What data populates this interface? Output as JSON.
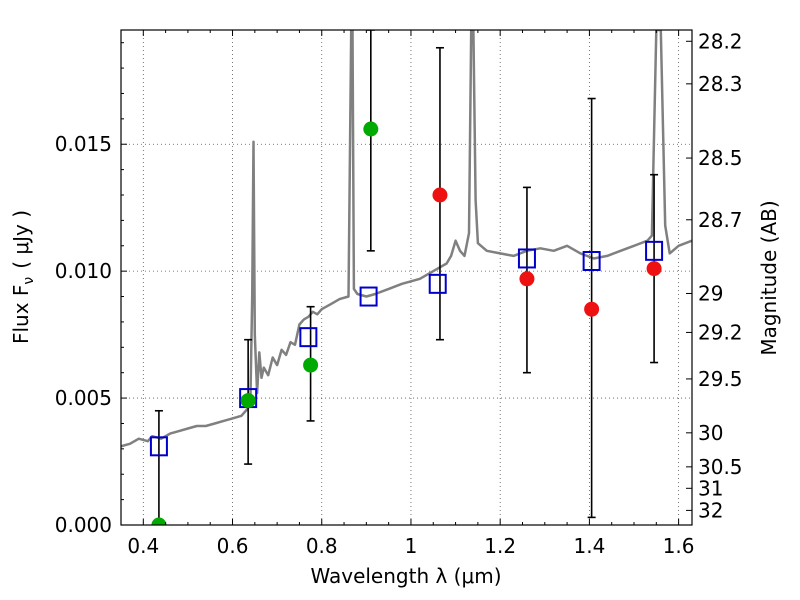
{
  "chart_data": {
    "type": "scatter",
    "xlabel": "Wavelength  λ (μm)",
    "ylabel": "Flux  F",
    "ylabel_sub": "ν",
    "ylabel_unit": "( μJy )",
    "y2label": "Magnitude (AB)",
    "xlim": [
      0.35,
      1.63
    ],
    "ylim": [
      0.0,
      0.0195
    ],
    "grid": true,
    "x_ticks": [
      0.4,
      0.6,
      0.8,
      1.0,
      1.2,
      1.4,
      1.6
    ],
    "x_tick_labels": [
      "0.4",
      "0.6",
      "0.8",
      "1",
      "1.2",
      "1.4",
      "1.6"
    ],
    "y_ticks": [
      0.0,
      0.005,
      0.01,
      0.015
    ],
    "y_tick_labels": [
      "0.000",
      "0.005",
      "0.010",
      "0.015"
    ],
    "y2_ticks": [
      28.2,
      28.3,
      28.5,
      28.7,
      29.0,
      29.2,
      29.5,
      30.0,
      30.5,
      31.0,
      32.0
    ],
    "y2_tick_labels": [
      "28.2",
      "28.3",
      "28.5",
      "28.7",
      "29",
      "29.2",
      "29.5",
      "30",
      "30.5",
      "31",
      "32"
    ],
    "colors": {
      "model": "#808080",
      "model_photometry": "#0000cc",
      "detection": "#00aa00",
      "upper": "#ee1111",
      "error_bar": "#000000",
      "grid": "#555555"
    },
    "series": [
      {
        "kind": "model-spectrum",
        "x": [
          0.35,
          0.37,
          0.39,
          0.41,
          0.42,
          0.44,
          0.46,
          0.48,
          0.5,
          0.52,
          0.54,
          0.56,
          0.58,
          0.6,
          0.62,
          0.635,
          0.64,
          0.644,
          0.647,
          0.65,
          0.655,
          0.66,
          0.665,
          0.67,
          0.68,
          0.69,
          0.7,
          0.71,
          0.72,
          0.73,
          0.74,
          0.75,
          0.76,
          0.77,
          0.78,
          0.79,
          0.8,
          0.81,
          0.82,
          0.84,
          0.86,
          0.866,
          0.869,
          0.872,
          0.88,
          0.9,
          0.92,
          0.95,
          0.98,
          1.0,
          1.02,
          1.04,
          1.06,
          1.08,
          1.09,
          1.1,
          1.11,
          1.12,
          1.13,
          1.135,
          1.14,
          1.145,
          1.15,
          1.17,
          1.2,
          1.23,
          1.26,
          1.29,
          1.32,
          1.35,
          1.38,
          1.41,
          1.44,
          1.47,
          1.5,
          1.53,
          1.54,
          1.55,
          1.56,
          1.57,
          1.58,
          1.6,
          1.63
        ],
        "y": [
          0.0031,
          0.0032,
          0.0034,
          0.0033,
          0.0035,
          0.0034,
          0.0036,
          0.0037,
          0.0038,
          0.0039,
          0.0039,
          0.004,
          0.0041,
          0.0042,
          0.0043,
          0.0046,
          0.0049,
          0.009,
          0.0151,
          0.0075,
          0.0052,
          0.0068,
          0.0058,
          0.0062,
          0.0059,
          0.0066,
          0.0063,
          0.0069,
          0.0067,
          0.0072,
          0.0071,
          0.0079,
          0.0081,
          0.0082,
          0.0084,
          0.0083,
          0.0085,
          0.0086,
          0.0087,
          0.0089,
          0.009,
          0.0195,
          0.0195,
          0.0093,
          0.0091,
          0.009,
          0.0091,
          0.0093,
          0.0095,
          0.0096,
          0.0097,
          0.0099,
          0.0101,
          0.0103,
          0.0106,
          0.0112,
          0.0108,
          0.0106,
          0.0115,
          0.0195,
          0.0195,
          0.0128,
          0.0111,
          0.0108,
          0.0107,
          0.0106,
          0.0108,
          0.0109,
          0.0108,
          0.011,
          0.0107,
          0.0105,
          0.0106,
          0.0108,
          0.011,
          0.0112,
          0.0114,
          0.0195,
          0.0195,
          0.0118,
          0.0107,
          0.011,
          0.0112
        ]
      },
      {
        "kind": "model-photometry",
        "marker": "open-square",
        "x": [
          0.435,
          0.635,
          0.77,
          0.905,
          1.06,
          1.26,
          1.405,
          1.545
        ],
        "y": [
          0.0031,
          0.005,
          0.0074,
          0.009,
          0.0095,
          0.0105,
          0.0104,
          0.0108
        ]
      },
      {
        "kind": "observed-detections",
        "marker": "filled-circle",
        "x": [
          0.435,
          0.635,
          0.775,
          0.91
        ],
        "y": [
          0.0,
          0.0049,
          0.0063,
          0.0156
        ]
      },
      {
        "kind": "observed-limits",
        "marker": "filled-circle",
        "x": [
          1.065,
          1.26,
          1.405,
          1.545
        ],
        "y": [
          0.013,
          0.0097,
          0.0085,
          0.0101
        ]
      },
      {
        "kind": "error-bars",
        "x": [
          0.435,
          0.635,
          0.775,
          0.91,
          1.065,
          1.26,
          1.405,
          1.545
        ],
        "low": [
          0.0,
          0.0024,
          0.0041,
          0.0108,
          0.0073,
          0.006,
          0.0003,
          0.0064
        ],
        "high": [
          0.0045,
          0.0073,
          0.0086,
          0.0195,
          0.0188,
          0.0133,
          0.0168,
          0.0138
        ]
      }
    ]
  }
}
